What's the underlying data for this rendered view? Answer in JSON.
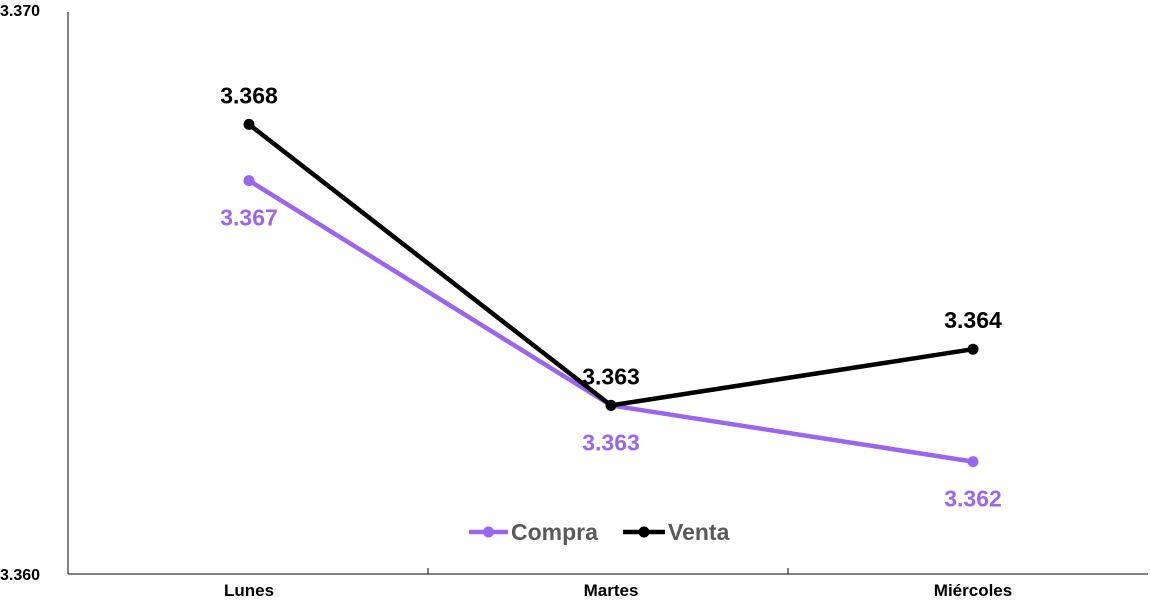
{
  "chart_data": {
    "type": "line",
    "categories": [
      "Lunes",
      "Martes",
      "Miércoles"
    ],
    "ylim": [
      3.36,
      3.37
    ],
    "y_ticks": [
      "3.360",
      "3.370"
    ],
    "grid": false,
    "legend_position": "bottom-center",
    "series": [
      {
        "name": "Compra",
        "color": "#9966ee",
        "values": [
          3.367,
          3.363,
          3.362
        ],
        "labels": [
          "3.367",
          "3.363",
          "3.362"
        ],
        "label_position": "below"
      },
      {
        "name": "Venta",
        "color": "#000000",
        "values": [
          3.368,
          3.363,
          3.364
        ],
        "labels": [
          "3.368",
          "3.363",
          "3.364"
        ],
        "label_position": "above"
      }
    ]
  }
}
